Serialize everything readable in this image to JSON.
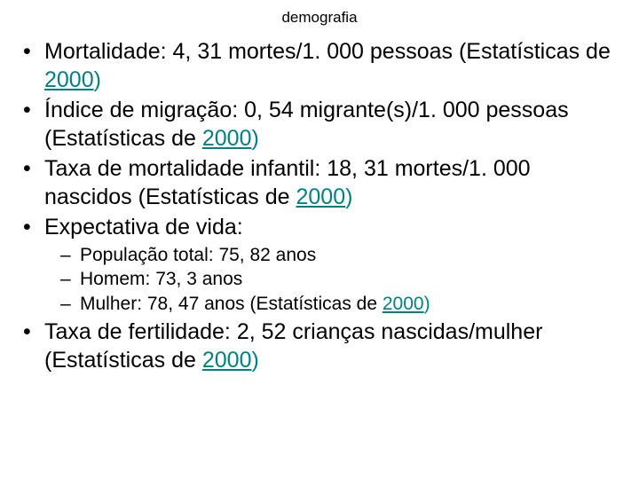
{
  "title": "demografia",
  "link_color": "#008080",
  "year_label": "2000",
  "stats_prefix": "(Estatísticas de ",
  "items": {
    "mortality": {
      "label": "Mortalidade:",
      "value": "4, 31 mortes/1. 000 pessoas"
    },
    "migration": {
      "label": "Índice de migração:",
      "value": "0, 54 migrante(s)/1. 000 pessoas"
    },
    "infant_mortality": {
      "label": "Taxa de mortalidade infantil:",
      "value": "18, 31 mortes/1. 000 nascidos"
    },
    "life_expectancy": {
      "label": "Expectativa de vida:",
      "sub": {
        "total": {
          "label": "População total:",
          "value": "75, 82 anos"
        },
        "male": {
          "label": "Homem:",
          "value": "73, 3 anos"
        },
        "female": {
          "label": "Mulher:",
          "value": "78, 47 anos"
        }
      }
    },
    "fertility": {
      "label": "Taxa de fertilidade:",
      "value": "2, 52 crianças nascidas/mulher"
    }
  }
}
